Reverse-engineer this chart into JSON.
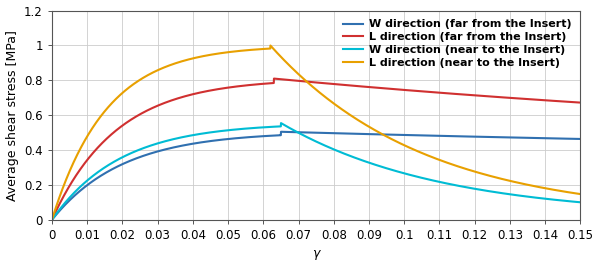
{
  "title": "",
  "xlabel": "γ",
  "ylabel": "Average shear stress [MPa]",
  "xlim": [
    0,
    0.15
  ],
  "ylim": [
    0,
    1.2
  ],
  "xticks": [
    0,
    0.01,
    0.02,
    0.03,
    0.04,
    0.05,
    0.06,
    0.07,
    0.08,
    0.09,
    0.1,
    0.11,
    0.12,
    0.13,
    0.14,
    0.15
  ],
  "yticks": [
    0,
    0.2,
    0.4,
    0.6,
    0.8,
    1.0,
    1.2
  ],
  "xtick_labels": [
    "0",
    "0.01",
    "0.02",
    "0.03",
    "0.04",
    "0.05",
    "0.06",
    "0.07",
    "0.08",
    "0.09",
    "0.1",
    "0.11",
    "0.12",
    "0.13",
    "0.14",
    "0.15"
  ],
  "ytick_labels": [
    "0",
    "0.2",
    "0.4",
    "0.6",
    "0.8",
    "1",
    "1.2"
  ],
  "series": [
    {
      "label": "W direction (far from the Insert)",
      "color": "#3070b0",
      "linewidth": 1.5
    },
    {
      "label": "L direction (far from the Insert)",
      "color": "#d03030",
      "linewidth": 1.5
    },
    {
      "label": "W direction (near to the Insert)",
      "color": "#00bcd4",
      "linewidth": 1.5
    },
    {
      "label": "L direction (near to the Insert)",
      "color": "#e8a000",
      "linewidth": 1.5
    }
  ],
  "background_color": "#ffffff",
  "grid_color": "#cccccc",
  "legend_fontsize": 8,
  "axis_fontsize": 9,
  "tick_fontsize": 8.5
}
